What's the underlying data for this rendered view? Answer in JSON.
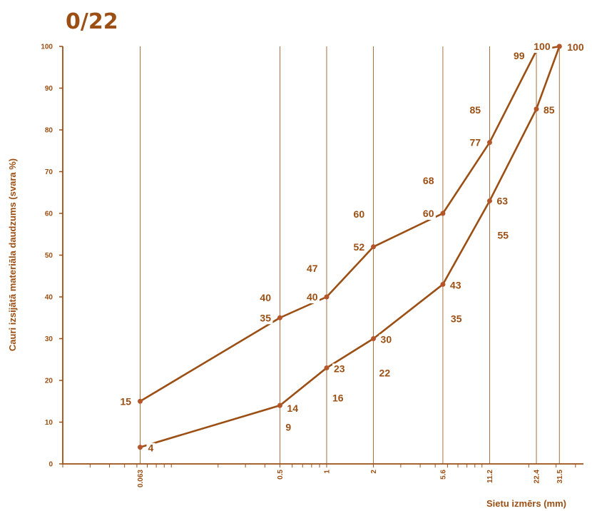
{
  "chart_data": {
    "type": "line",
    "title": "0/22",
    "xlabel": "Sietu izmērs (mm)",
    "ylabel": "Cauri izsijātā materiāla daudzums (svara %)",
    "x_scale": "log",
    "xlim": [
      0.02,
      45
    ],
    "ylim": [
      0,
      100
    ],
    "y_ticks": [
      "0",
      "10",
      "20",
      "30",
      "40",
      "50",
      "60",
      "70",
      "80",
      "90",
      "100"
    ],
    "x_ticks": [
      "0.063",
      "0.5",
      "1",
      "2",
      "5.6",
      "11.2",
      "22.4",
      "31.5"
    ],
    "grid": "vertical lines at sieve sizes",
    "colors": {
      "line": "#9b4f14",
      "marker": "#b5552a",
      "grid": "#a0602a",
      "text": "#9b4f14"
    },
    "series": [
      {
        "x": [
          0.063,
          0.5,
          1,
          2,
          5.6,
          11.2,
          22.4,
          31.5
        ],
        "values": [
          15,
          35,
          40,
          52,
          60,
          77,
          99,
          100
        ],
        "labels": [
          "15",
          "35",
          "40",
          "52",
          "60",
          "77",
          "99",
          "100"
        ]
      },
      {
        "x": [
          0.063,
          0.5,
          1,
          2,
          5.6,
          11.2,
          22.4,
          31.5
        ],
        "values": [
          4,
          14,
          23,
          30,
          43,
          63,
          85,
          100
        ],
        "labels": [
          "4",
          "14",
          "23",
          "30",
          "43",
          "63",
          "85",
          "100"
        ]
      }
    ],
    "annotations": [
      {
        "x": 0.5,
        "y": 40,
        "text": "40"
      },
      {
        "x": 1,
        "y": 47,
        "text": "47"
      },
      {
        "x": 2,
        "y": 60,
        "text": "60"
      },
      {
        "x": 5.6,
        "y": 68,
        "text": "68"
      },
      {
        "x": 11.2,
        "y": 85,
        "text": "85"
      },
      {
        "x": 0.5,
        "y": 9,
        "text": "9"
      },
      {
        "x": 1,
        "y": 16,
        "text": "16"
      },
      {
        "x": 2,
        "y": 22,
        "text": "22"
      },
      {
        "x": 5.6,
        "y": 35,
        "text": "35"
      },
      {
        "x": 11.2,
        "y": 55,
        "text": "55"
      }
    ]
  }
}
